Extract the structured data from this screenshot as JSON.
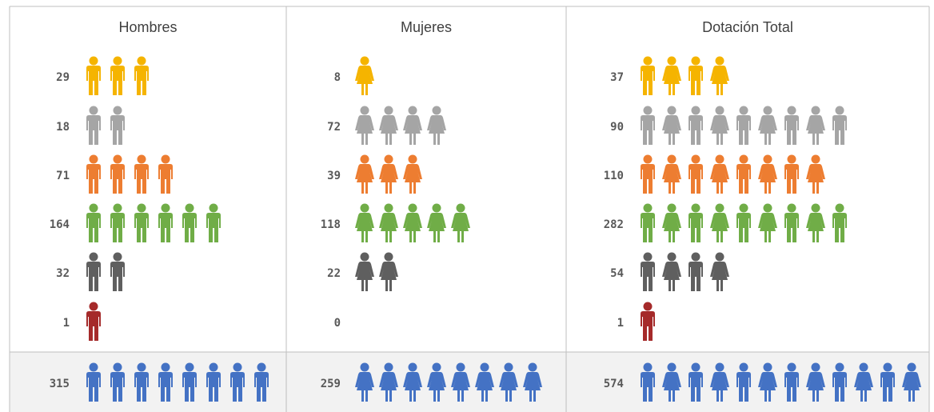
{
  "chart_data": {
    "type": "pictogram",
    "colors": [
      "#f5b400",
      "#a5a5a5",
      "#ed7d31",
      "#70ad47",
      "#5f5f5f",
      "#a52a2a"
    ],
    "total_color": "#4472c4",
    "panels": [
      {
        "title": "Hombres",
        "figure": "male",
        "rows": [
          {
            "value": 29,
            "icons": 3
          },
          {
            "value": 18,
            "icons": 2
          },
          {
            "value": 71,
            "icons": 4
          },
          {
            "value": 164,
            "icons": 6
          },
          {
            "value": 32,
            "icons": 2
          },
          {
            "value": 1,
            "icons": 1
          }
        ],
        "total": {
          "value": 315,
          "icons": 8
        }
      },
      {
        "title": "Mujeres",
        "figure": "female",
        "rows": [
          {
            "value": 8,
            "icons": 1
          },
          {
            "value": 72,
            "icons": 4
          },
          {
            "value": 39,
            "icons": 3
          },
          {
            "value": 118,
            "icons": 5
          },
          {
            "value": 22,
            "icons": 2
          },
          {
            "value": 0,
            "icons": 0
          }
        ],
        "total": {
          "value": 259,
          "icons": 8
        }
      },
      {
        "title": "Dotación Total",
        "figure": "mixed",
        "rows": [
          {
            "value": 37,
            "icons": 4
          },
          {
            "value": 90,
            "icons": 9
          },
          {
            "value": 110,
            "icons": 8
          },
          {
            "value": 282,
            "icons": 9
          },
          {
            "value": 54,
            "icons": 4
          },
          {
            "value": 1,
            "icons": 1
          }
        ],
        "total": {
          "value": 574,
          "icons": 12
        }
      }
    ]
  }
}
